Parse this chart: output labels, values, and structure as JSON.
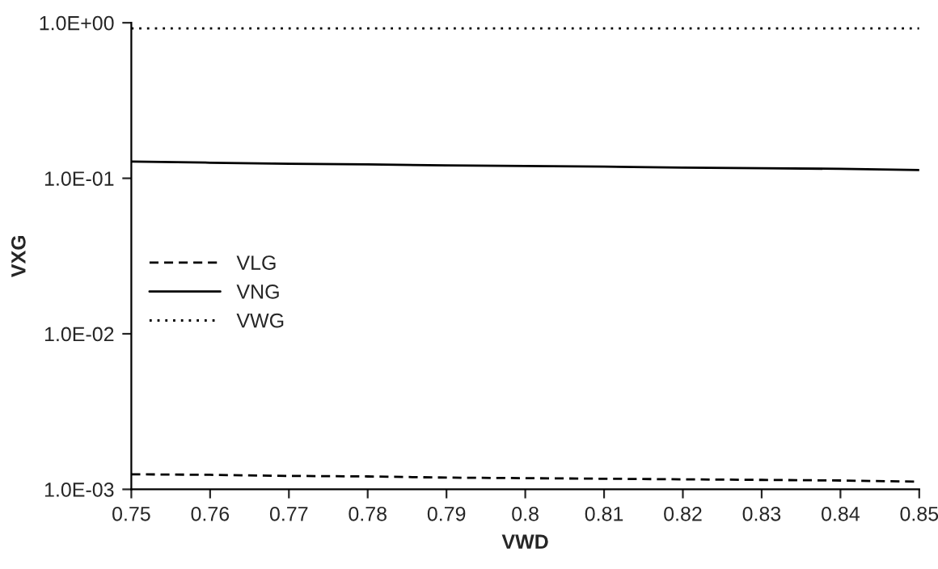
{
  "chart_data": {
    "type": "line",
    "xlabel": "VWD",
    "ylabel": "VXG",
    "log": "y",
    "legend": "left",
    "grid": false,
    "marker": "none",
    "x": [
      0.75,
      0.76,
      0.77,
      0.78,
      0.79,
      0.8,
      0.81,
      0.82,
      0.83,
      0.84,
      0.85
    ],
    "xlim": [
      0.75,
      0.85
    ],
    "xticks": [
      0.75,
      0.76,
      0.77,
      0.78,
      0.79,
      0.8,
      0.81,
      0.82,
      0.83,
      0.84,
      0.85
    ],
    "ylim": [
      0.001,
      1
    ],
    "yticks": [
      {
        "value": 0.001,
        "label": "1.0E-03"
      },
      {
        "value": 0.01,
        "label": "1.0E-02"
      },
      {
        "value": 0.1,
        "label": "1.0E-01"
      },
      {
        "value": 1,
        "label": "1.0E+00"
      }
    ],
    "series": [
      {
        "name": "VLG",
        "color": "#000000",
        "line_style": "dashed",
        "values": [
          0.00125,
          0.00124,
          0.00122,
          0.00121,
          0.00119,
          0.00118,
          0.00117,
          0.00116,
          0.00115,
          0.00114,
          0.00112
        ]
      },
      {
        "name": "VNG",
        "color": "#000000",
        "line_style": "solid",
        "values": [
          0.128,
          0.126,
          0.124,
          0.123,
          0.121,
          0.12,
          0.119,
          0.117,
          0.116,
          0.115,
          0.113
        ]
      },
      {
        "name": "VWG",
        "color": "#000000",
        "line_style": "dotted",
        "values": [
          0.92,
          0.92,
          0.92,
          0.92,
          0.92,
          0.92,
          0.92,
          0.92,
          0.92,
          0.92,
          0.92
        ]
      }
    ]
  }
}
